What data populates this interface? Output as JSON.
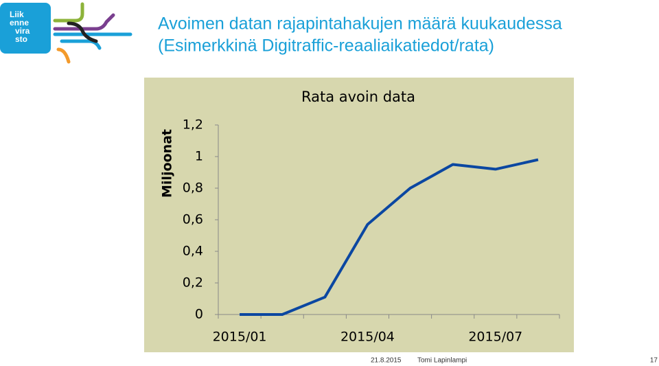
{
  "logo": {
    "lines": [
      "Liik",
      "enne",
      "vira",
      "sto"
    ]
  },
  "slide": {
    "title": [
      "Avoimen datan rajapintahakujen määrä kuukaudessa",
      "(Esimerkkinä Digitraffic-reaaliaikatiedot/rata)"
    ]
  },
  "footer": {
    "date": "21.8.2015",
    "author": "Tomi Lapinlampi",
    "page": "17"
  },
  "chart_data": {
    "type": "line",
    "title": "Rata avoin data",
    "y_label": "Miljoonat",
    "categories": [
      "2015/01",
      null,
      null,
      "2015/04",
      null,
      null,
      "2015/07",
      null
    ],
    "series": [
      {
        "name": "Rata avoin data",
        "color": "#0b47a1",
        "values": [
          0,
          0,
          0.11,
          0.57,
          0.8,
          0.95,
          0.92,
          0.98
        ]
      }
    ],
    "ylim": [
      0,
      1.2
    ],
    "yticks": [
      0,
      {
        "value": 0.2,
        "label": "0,2"
      },
      {
        "value": 0.4,
        "label": "0,4"
      },
      {
        "value": 0.6,
        "label": "0,6"
      },
      {
        "value": 0.8,
        "label": "0,8"
      },
      1,
      {
        "value": 1.2,
        "label": "1,2"
      }
    ],
    "legend": false,
    "grid": false
  }
}
